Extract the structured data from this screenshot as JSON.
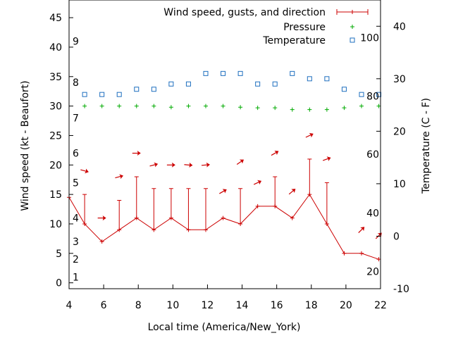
{
  "chart_data": {
    "type": "line",
    "xlabel": "Local time (America/New_York)",
    "ylabel_left": "Wind speed (kt - Beaufort)",
    "ylabel_right": "Temperature (C - F)",
    "xlim": [
      4,
      22
    ],
    "ylim_left": [
      -1,
      48
    ],
    "ylim_right": [
      -10,
      45
    ],
    "x_ticks": [
      4,
      6,
      8,
      10,
      12,
      14,
      16,
      18,
      20,
      22
    ],
    "y_ticks_left": [
      0,
      5,
      10,
      15,
      20,
      25,
      30,
      35,
      40,
      45
    ],
    "y_ticks_right": [
      -10,
      0,
      10,
      20,
      30,
      40
    ],
    "beaufort_labels": [
      {
        "text": "1",
        "kt": 1.0
      },
      {
        "text": "2",
        "kt": 4.0
      },
      {
        "text": "3",
        "kt": 7.0
      },
      {
        "text": "4",
        "kt": 11.0
      },
      {
        "text": "5",
        "kt": 17.0
      },
      {
        "text": "6",
        "kt": 22.0
      },
      {
        "text": "7",
        "kt": 28.0
      },
      {
        "text": "8",
        "kt": 34.0
      },
      {
        "text": "9",
        "kt": 41.0
      }
    ],
    "fahrenheit_labels": [
      {
        "text": "20",
        "temp_c": -6.7
      },
      {
        "text": "40",
        "temp_c": 4.4
      },
      {
        "text": "60",
        "temp_c": 15.6
      },
      {
        "text": "80",
        "temp_c": 26.7
      },
      {
        "text": "100",
        "temp_c": 37.8
      }
    ],
    "legend": [
      {
        "label": "Wind speed, gusts, and direction",
        "color": "#cc0000"
      },
      {
        "label": "Pressure",
        "color": "#00aa00"
      },
      {
        "label": "Temperature",
        "color": "#1e6fbf"
      }
    ],
    "legend_position": "top-right",
    "series": {
      "wind_speed": {
        "x": [
          4,
          4.9,
          5.9,
          6.9,
          7.9,
          8.9,
          9.9,
          10.9,
          11.9,
          12.9,
          13.9,
          14.9,
          15.9,
          16.9,
          17.9,
          18.9,
          19.9,
          20.9,
          21.9
        ],
        "y": [
          14.5,
          10,
          7,
          9,
          11,
          9,
          11,
          9,
          9,
          11,
          10,
          13,
          13,
          11,
          15,
          10,
          5,
          5,
          4
        ]
      },
      "gusts": {
        "x": [
          4.9,
          6.9,
          7.9,
          8.9,
          9.9,
          10.9,
          11.9,
          13.9,
          15.9,
          17.9,
          18.9
        ],
        "low": [
          10,
          9,
          11,
          9,
          11,
          9,
          9,
          10,
          13,
          15,
          10
        ],
        "high": [
          15,
          14,
          18,
          16,
          16,
          16,
          16,
          16,
          18,
          21,
          17
        ]
      },
      "direction_arrows": {
        "x": [
          4.9,
          5.9,
          6.9,
          7.9,
          8.9,
          9.9,
          10.9,
          11.9,
          12.9,
          13.9,
          14.9,
          15.9,
          16.9,
          17.9,
          18.9,
          20.9,
          21.9
        ],
        "y": [
          19,
          11,
          18,
          22,
          20,
          20,
          20,
          20,
          15.5,
          20.5,
          17,
          22,
          15.5,
          25,
          21,
          9,
          8
        ],
        "angle_deg": [
          15,
          0,
          -15,
          0,
          -15,
          0,
          5,
          -5,
          -30,
          -35,
          -25,
          -30,
          -40,
          -25,
          -20,
          -45,
          -45
        ]
      },
      "pressure": {
        "x": [
          4.9,
          5.9,
          6.9,
          7.9,
          8.9,
          9.9,
          10.9,
          11.9,
          12.9,
          13.9,
          14.9,
          15.9,
          16.9,
          17.9,
          18.9,
          19.9,
          20.9,
          21.9
        ],
        "y": [
          30,
          30,
          30,
          30,
          30,
          29.8,
          30,
          30,
          30,
          29.8,
          29.7,
          29.7,
          29.4,
          29.4,
          29.4,
          29.7,
          30,
          30
        ]
      },
      "temperature_c": {
        "x": [
          4.9,
          5.9,
          6.9,
          7.9,
          8.9,
          9.9,
          10.9,
          11.9,
          12.9,
          13.9,
          14.9,
          15.9,
          16.9,
          17.9,
          18.9,
          19.9,
          20.9,
          21.9
        ],
        "y": [
          27,
          27,
          27,
          28,
          28,
          29,
          29,
          31,
          31,
          31,
          29,
          29,
          31,
          30,
          30,
          28,
          27,
          27
        ]
      }
    }
  }
}
